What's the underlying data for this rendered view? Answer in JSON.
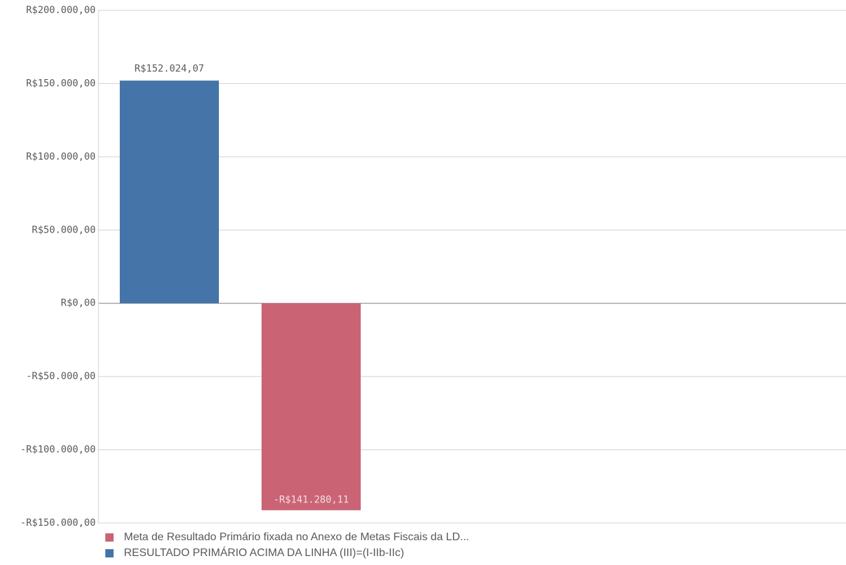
{
  "chart_data": {
    "type": "bar",
    "categories": [
      null
    ],
    "series": [
      {
        "name": "RESULTADO PRIMÁRIO ACIMA DA LINHA (III)=(I-IIb-IIc)",
        "color": "#4575a8",
        "values": [
          152024.07
        ],
        "value_labels": [
          "R$152.024,07"
        ]
      },
      {
        "name": "Meta de Resultado Primário fixada no Anexo de Metas Fiscais da LD...",
        "color": "#ca6475",
        "values": [
          -141280.11
        ],
        "value_labels": [
          "-R$141.280,11"
        ]
      }
    ],
    "ylim": [
      -150000,
      200000
    ],
    "yticks": [
      {
        "value": -150000,
        "label": "-R$150.000,00"
      },
      {
        "value": -100000,
        "label": "-R$100.000,00"
      },
      {
        "value": -50000,
        "label": "-R$50.000,00"
      },
      {
        "value": 0,
        "label": "R$0,00"
      },
      {
        "value": 50000,
        "label": "R$50.000,00"
      },
      {
        "value": 100000,
        "label": "R$100.000,00"
      },
      {
        "value": 150000,
        "label": "R$150.000,00"
      },
      {
        "value": 200000,
        "label": "R$200.000,00"
      }
    ],
    "grid": true
  }
}
